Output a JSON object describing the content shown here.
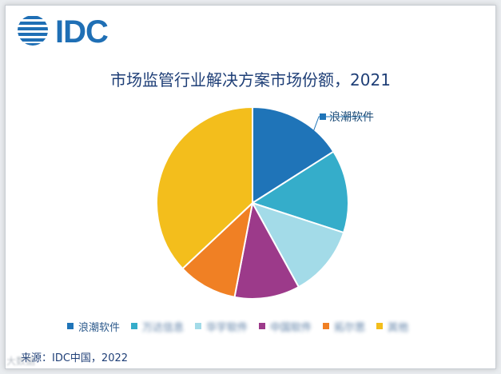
{
  "logo": {
    "text": "IDC"
  },
  "chart_data": {
    "type": "pie",
    "title": "市场监管行业解决方案市场份额，2021",
    "callout_label": "浪潮软件",
    "series": [
      {
        "name": "浪潮软件",
        "value": 16,
        "color": "#1f74b8"
      },
      {
        "name": "万达信息",
        "value": 14,
        "color": "#35adca"
      },
      {
        "name": "华宇软件",
        "value": 12,
        "color": "#a3dbe8"
      },
      {
        "name": "中国软件",
        "value": 11,
        "color": "#9c3a8a"
      },
      {
        "name": "拓尔思",
        "value": 10,
        "color": "#f08024"
      },
      {
        "name": "其他",
        "value": 37,
        "color": "#f3be1c"
      }
    ],
    "legend_position": "bottom"
  },
  "source": "来源：IDC中国，2022",
  "watermark": "大数据"
}
